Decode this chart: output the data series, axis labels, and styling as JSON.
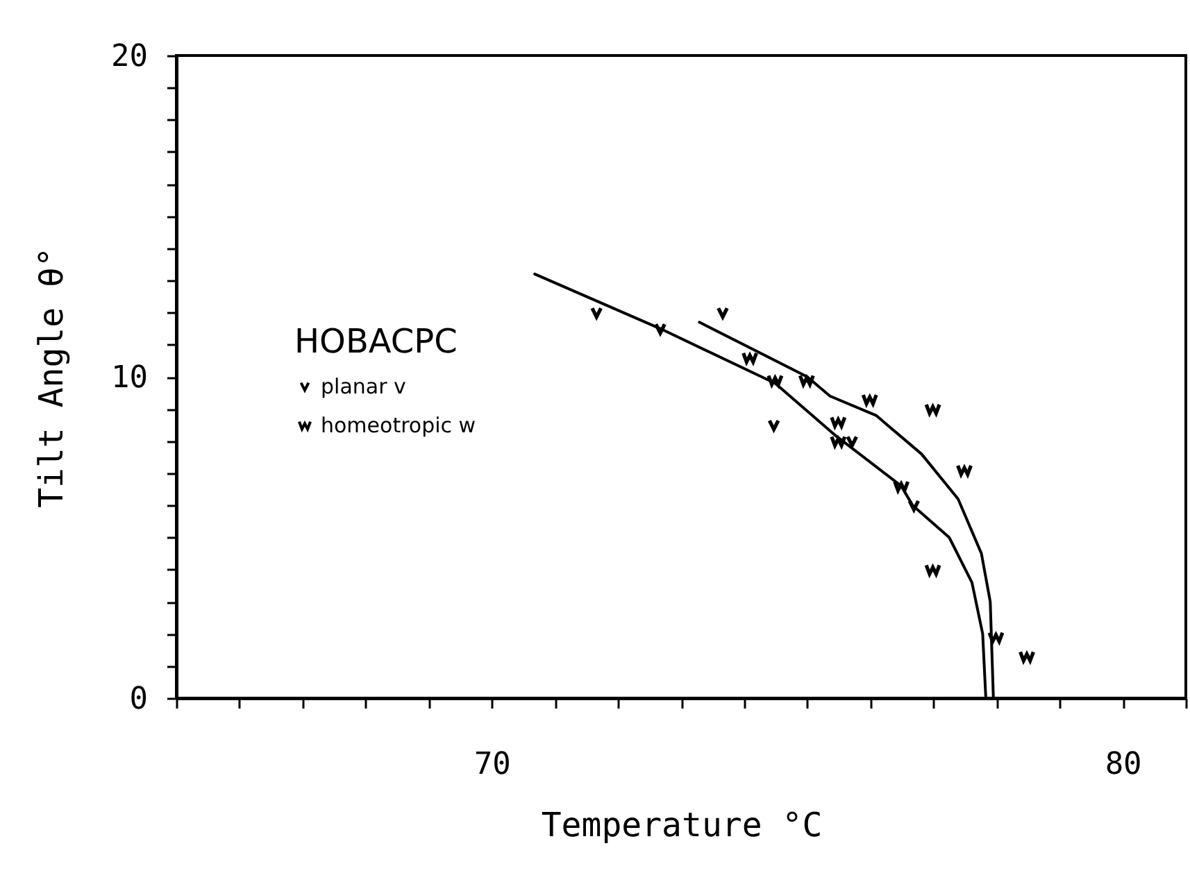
{
  "chart_data": {
    "type": "scatter",
    "xlabel": "Temperature °C",
    "ylabel": "Tilt Angle θ°",
    "legend_title": "HOBACPC",
    "legend": "left",
    "xlim": [
      65,
      81
    ],
    "ylim": [
      0,
      20
    ],
    "xticks": [
      {
        "value": 65,
        "label": null
      },
      {
        "value": 66,
        "label": null
      },
      {
        "value": 67,
        "label": null
      },
      {
        "value": 68,
        "label": null
      },
      {
        "value": 69,
        "label": null
      },
      70,
      {
        "value": 71,
        "label": null
      },
      {
        "value": 72,
        "label": null
      },
      {
        "value": 73,
        "label": null
      },
      {
        "value": 74,
        "label": null
      },
      {
        "value": 75,
        "label": null
      },
      {
        "value": 76,
        "label": null
      },
      {
        "value": 77,
        "label": null
      },
      {
        "value": 78,
        "label": null
      },
      {
        "value": 79,
        "label": null
      },
      80,
      {
        "value": 81,
        "label": null
      }
    ],
    "yticks": [
      0,
      {
        "value": 1,
        "label": null
      },
      {
        "value": 2,
        "label": null
      },
      {
        "value": 3,
        "label": null
      },
      {
        "value": 4,
        "label": null
      },
      {
        "value": 5,
        "label": null
      },
      {
        "value": 6,
        "label": null
      },
      {
        "value": 7,
        "label": null
      },
      {
        "value": 8,
        "label": null
      },
      {
        "value": 9,
        "label": null
      },
      10,
      {
        "value": 11,
        "label": null
      },
      {
        "value": 12,
        "label": null
      },
      {
        "value": 13,
        "label": null
      },
      {
        "value": 14,
        "label": null
      },
      {
        "value": 15,
        "label": null
      },
      {
        "value": 16,
        "label": null
      },
      {
        "value": 17,
        "label": null
      },
      {
        "value": 18,
        "label": null
      },
      {
        "value": 19,
        "label": null
      },
      20
    ],
    "series": [
      {
        "name": "planar v",
        "color": "#000000",
        "x": [
          71.66,
          72.67,
          73.66,
          74.47,
          75.71,
          76.69
        ],
        "values": [
          12.0,
          11.5,
          12.0,
          8.5,
          8.0,
          6.0
        ]
      },
      {
        "name": "homeotropic w",
        "color": "#000000",
        "x": [
          74.09,
          74.49,
          74.99,
          75.49,
          75.49,
          75.99,
          76.49,
          76.99,
          76.99,
          77.49,
          77.99,
          78.48
        ],
        "values": [
          10.6,
          9.9,
          9.9,
          8.6,
          8.0,
          9.3,
          6.6,
          9.0,
          4.0,
          7.1,
          1.9,
          1.3
        ]
      },
      {
        "type": "line",
        "marker": "none",
        "line_style": "solid",
        "color": "#000000",
        "x": [
          70.68,
          72.67,
          74.49,
          75.43,
          76.49,
          76.67,
          77.25,
          77.61,
          77.78,
          77.83
        ],
        "values": [
          13.2,
          11.5,
          9.8,
          8.2,
          6.6,
          6.0,
          5.0,
          3.6,
          2.0,
          0
        ]
      },
      {
        "type": "line",
        "marker": "none",
        "line_style": "solid",
        "color": "#000000",
        "x": [
          73.29,
          75.0,
          75.36,
          76.09,
          76.81,
          77.39,
          77.76,
          77.9,
          77.95
        ],
        "values": [
          11.7,
          10.0,
          9.4,
          8.8,
          7.6,
          6.2,
          4.5,
          3.0,
          0
        ]
      }
    ]
  }
}
